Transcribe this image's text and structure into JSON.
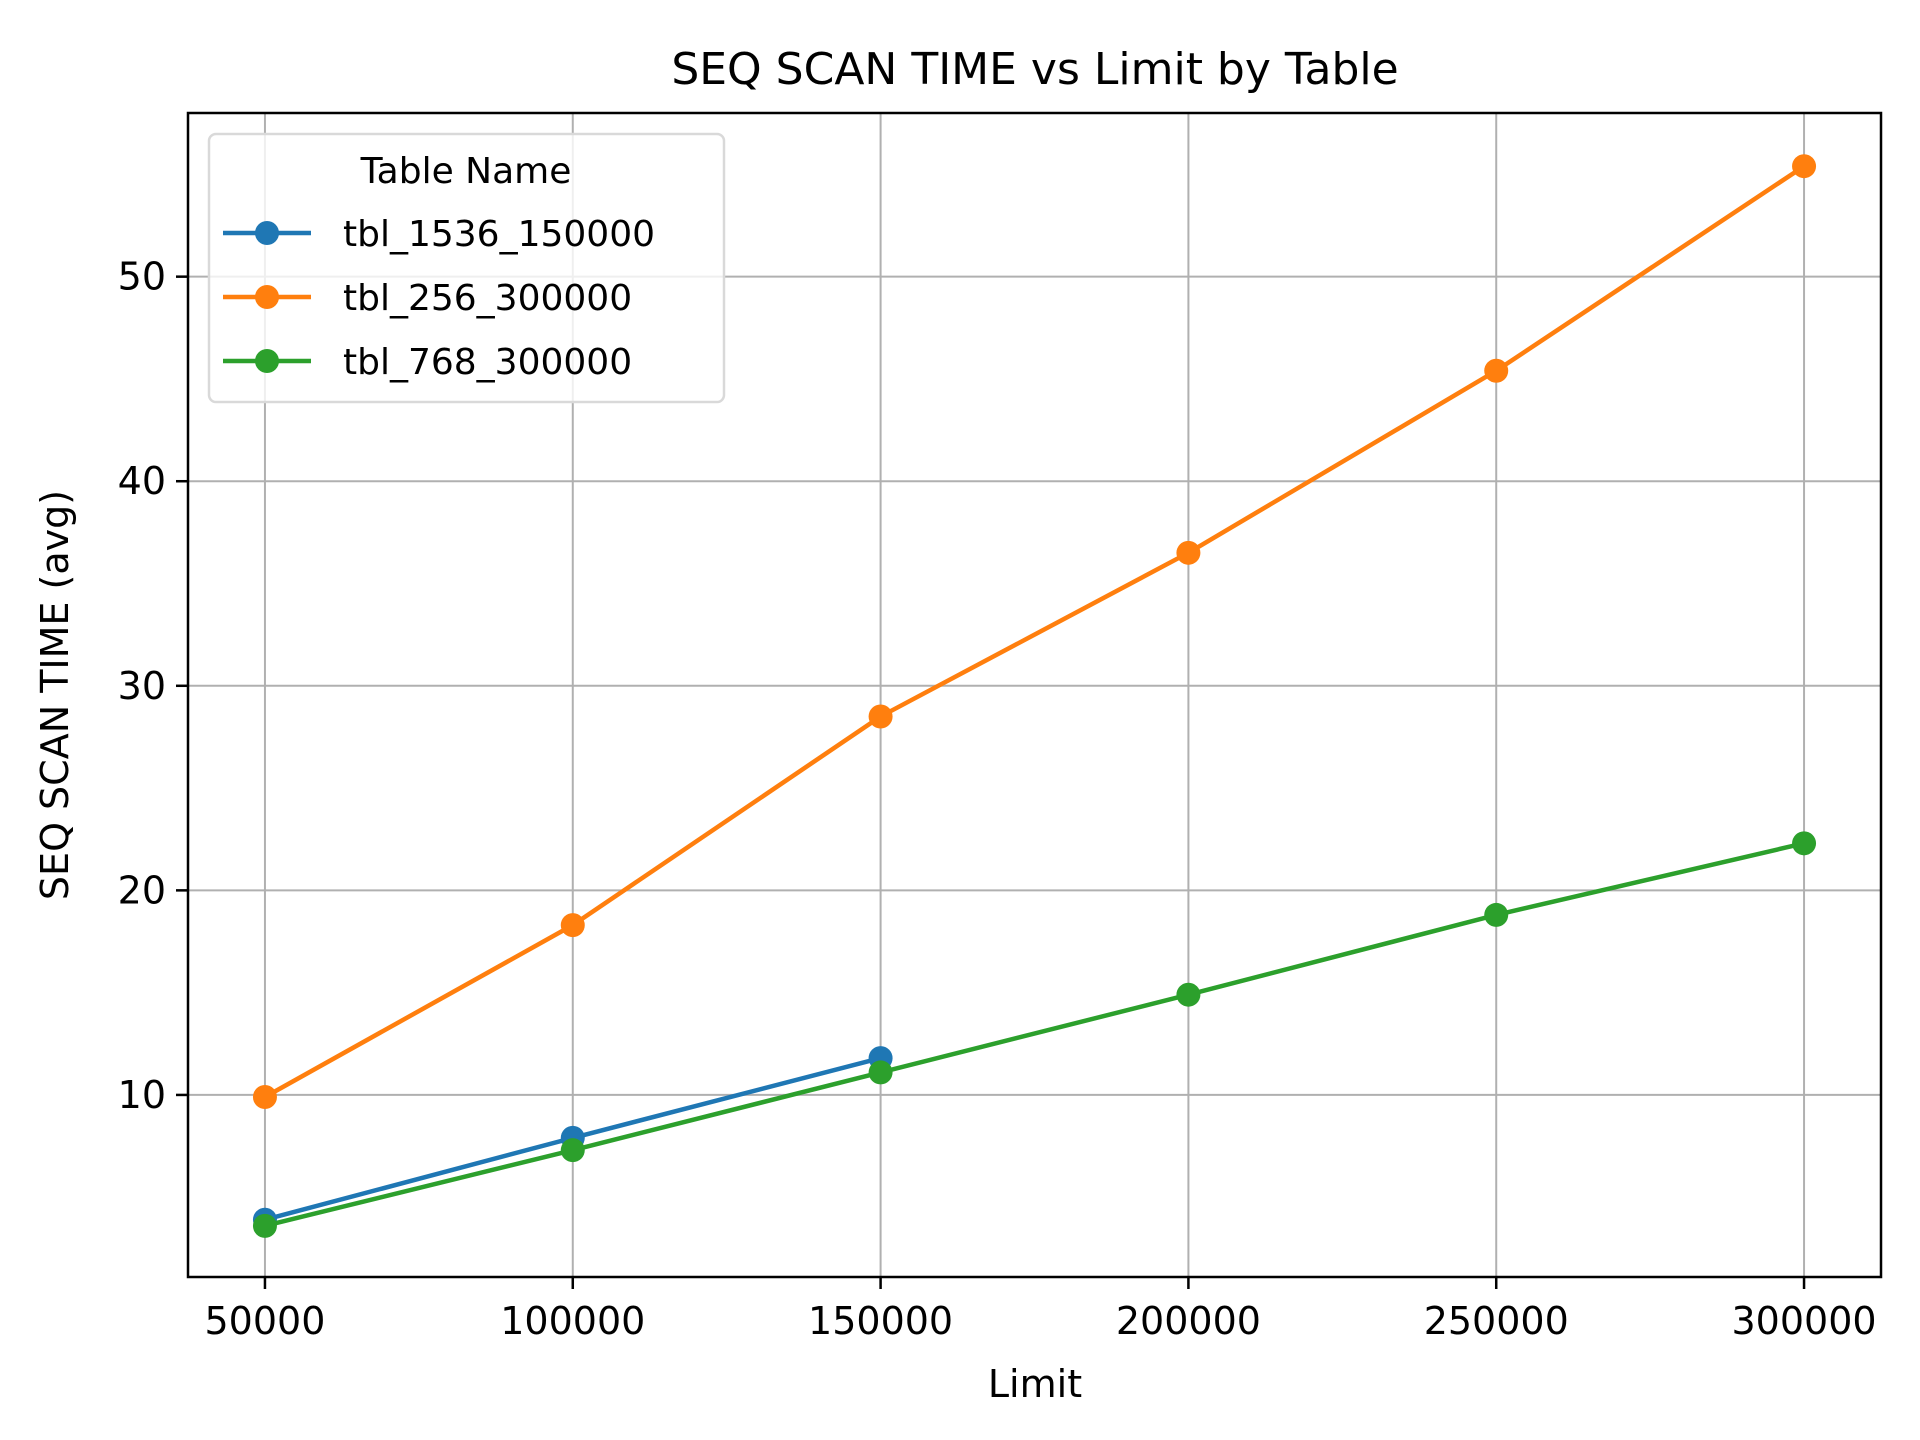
{
  "chart_data": {
    "type": "line",
    "title": "SEQ SCAN TIME vs Limit by Table",
    "xlabel": "Limit",
    "ylabel": "SEQ SCAN TIME (avg)",
    "x_ticks": [
      50000,
      100000,
      150000,
      200000,
      250000,
      300000
    ],
    "y_ticks": [
      10,
      20,
      30,
      40,
      50
    ],
    "xlim": [
      37500,
      312500
    ],
    "ylim": [
      1.1,
      58.0
    ],
    "grid": true,
    "legend": {
      "title": "Table Name",
      "placement": "top-left"
    },
    "series": [
      {
        "name": "tbl_1536_150000",
        "color": "#1f77b4",
        "marker": "circle",
        "x": [
          50000,
          100000,
          150000
        ],
        "y": [
          3.9,
          7.9,
          11.8
        ]
      },
      {
        "name": "tbl_256_300000",
        "color": "#ff7f0e",
        "marker": "circle",
        "x": [
          50000,
          100000,
          150000,
          200000,
          250000,
          300000
        ],
        "y": [
          9.9,
          18.3,
          28.5,
          36.5,
          45.4,
          55.4
        ]
      },
      {
        "name": "tbl_768_300000",
        "color": "#2ca02c",
        "marker": "circle",
        "x": [
          50000,
          100000,
          150000,
          200000,
          250000,
          300000
        ],
        "y": [
          3.6,
          7.3,
          11.1,
          14.9,
          18.8,
          22.3
        ]
      }
    ]
  }
}
